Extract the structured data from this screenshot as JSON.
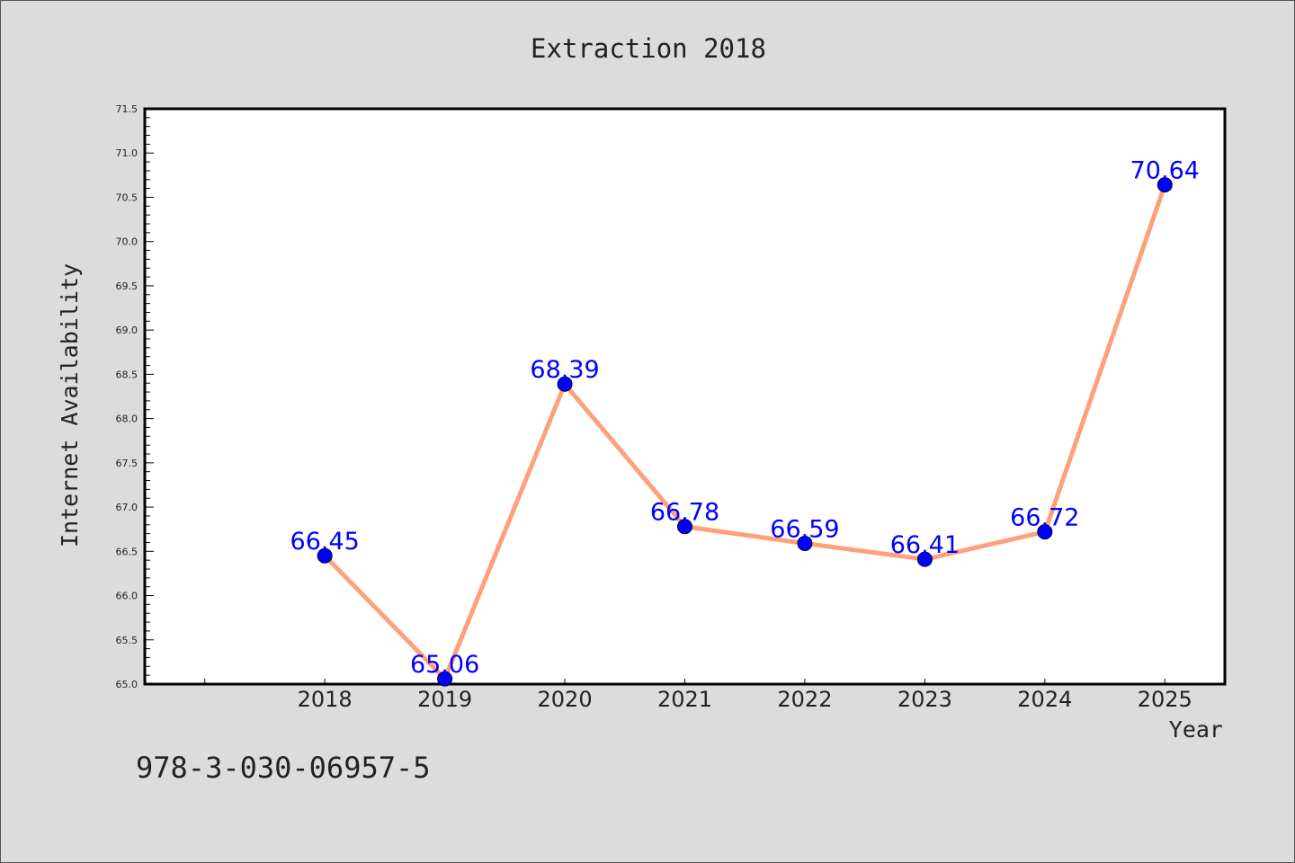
{
  "chart_data": {
    "type": "line",
    "title": "Extraction 2018",
    "xlabel": "Year",
    "ylabel": "Internet Availability",
    "x": [
      2018,
      2019,
      2020,
      2021,
      2022,
      2023,
      2024,
      2025
    ],
    "x_tick_labels": [
      "2018",
      "2019",
      "2020",
      "2021",
      "2022",
      "2023",
      "2024",
      "2025"
    ],
    "series": [
      {
        "values": [
          66.45,
          65.06,
          68.39,
          66.78,
          66.59,
          66.41,
          66.72,
          70.64
        ],
        "data_labels": [
          "66.45",
          "65.06",
          "68.39",
          "66.78",
          "66.59",
          "66.41",
          "66.72",
          "70.64"
        ]
      }
    ],
    "xlim": [
      2016.5,
      2025.5
    ],
    "ylim": [
      65.0,
      71.5
    ],
    "y_tick_labels": [
      "65.0",
      "65.5",
      "66.0",
      "66.5",
      "67.0",
      "67.5",
      "68.0",
      "68.5",
      "69.0",
      "69.5",
      "70.0",
      "70.5",
      "71.0",
      "71.5"
    ],
    "y_ticks": [
      65.0,
      65.5,
      66.0,
      66.5,
      67.0,
      67.5,
      68.0,
      68.5,
      69.0,
      69.5,
      70.0,
      70.5,
      71.0,
      71.5
    ],
    "grid": false,
    "line_color": "#ffa07a",
    "marker_color": "#0000ff",
    "label_color": "#0000ff"
  },
  "footer_text": "978-3-030-06957-5",
  "colors": {
    "background": "#dcdcdc",
    "plot_background": "#ffffff",
    "text": "#222222"
  }
}
